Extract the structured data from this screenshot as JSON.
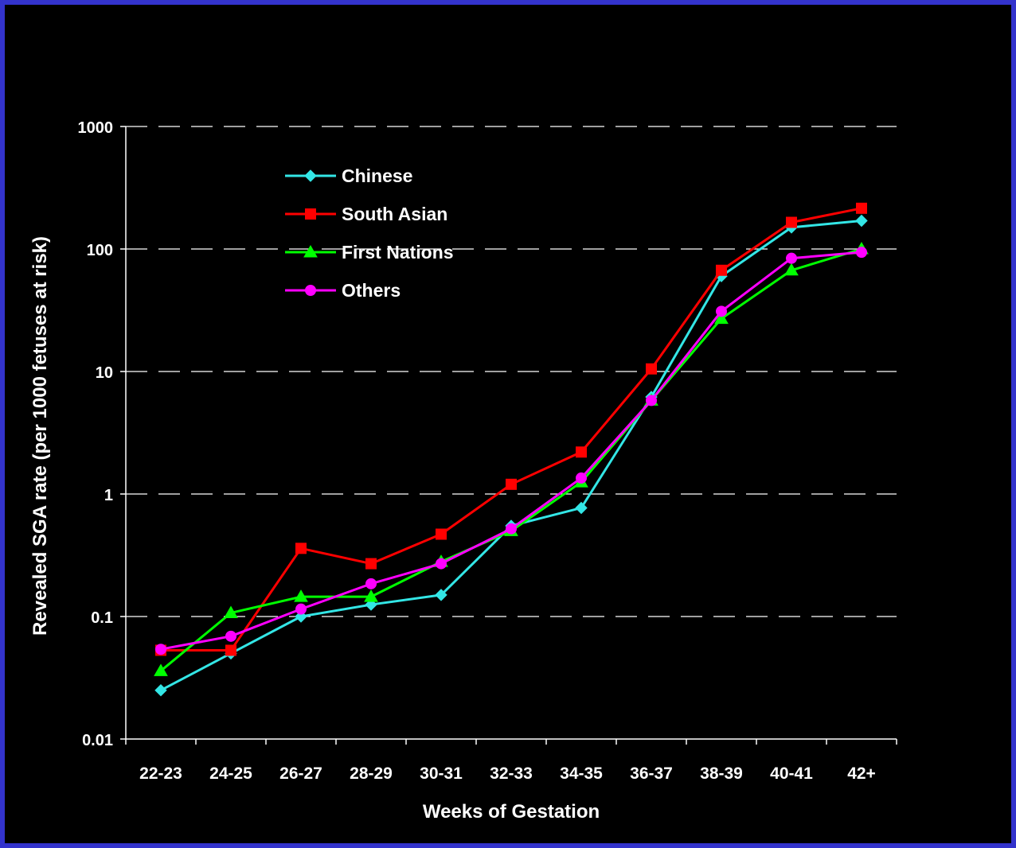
{
  "chart_data": {
    "type": "line",
    "title": "",
    "xlabel": "Weeks of Gestation",
    "ylabel": "Revealed SGA rate (per 1000 fetuses at risk)",
    "yscale": "log",
    "ylim": [
      0.01,
      1000
    ],
    "yticks": [
      "0.01",
      "0.1",
      "1",
      "10",
      "100",
      "1000"
    ],
    "grid": "horizontal dashed",
    "legend_position": "top-left",
    "categories": [
      "22-23",
      "24-25",
      "26-27",
      "28-29",
      "30-31",
      "32-33",
      "34-35",
      "36-37",
      "38-39",
      "40-41",
      "42+"
    ],
    "series": [
      {
        "name": "Chinese",
        "color": "#33E6E6",
        "marker": "diamond",
        "values": [
          0.025,
          0.05,
          0.1,
          0.125,
          0.15,
          0.55,
          0.77,
          6.2,
          60,
          150,
          170
        ]
      },
      {
        "name": "South Asian",
        "color": "#FF0000",
        "marker": "square",
        "values": [
          0.053,
          0.053,
          0.36,
          0.27,
          0.47,
          1.2,
          2.2,
          10.5,
          67,
          165,
          215
        ]
      },
      {
        "name": "First Nations",
        "color": "#00FF00",
        "marker": "triangle",
        "values": [
          0.036,
          0.107,
          0.145,
          0.145,
          0.28,
          0.5,
          1.25,
          5.8,
          27,
          67,
          100
        ]
      },
      {
        "name": "Others",
        "color": "#FF00FF",
        "marker": "circle",
        "values": [
          0.054,
          0.069,
          0.115,
          0.185,
          0.27,
          0.52,
          1.35,
          5.8,
          31,
          84,
          94
        ]
      }
    ]
  }
}
